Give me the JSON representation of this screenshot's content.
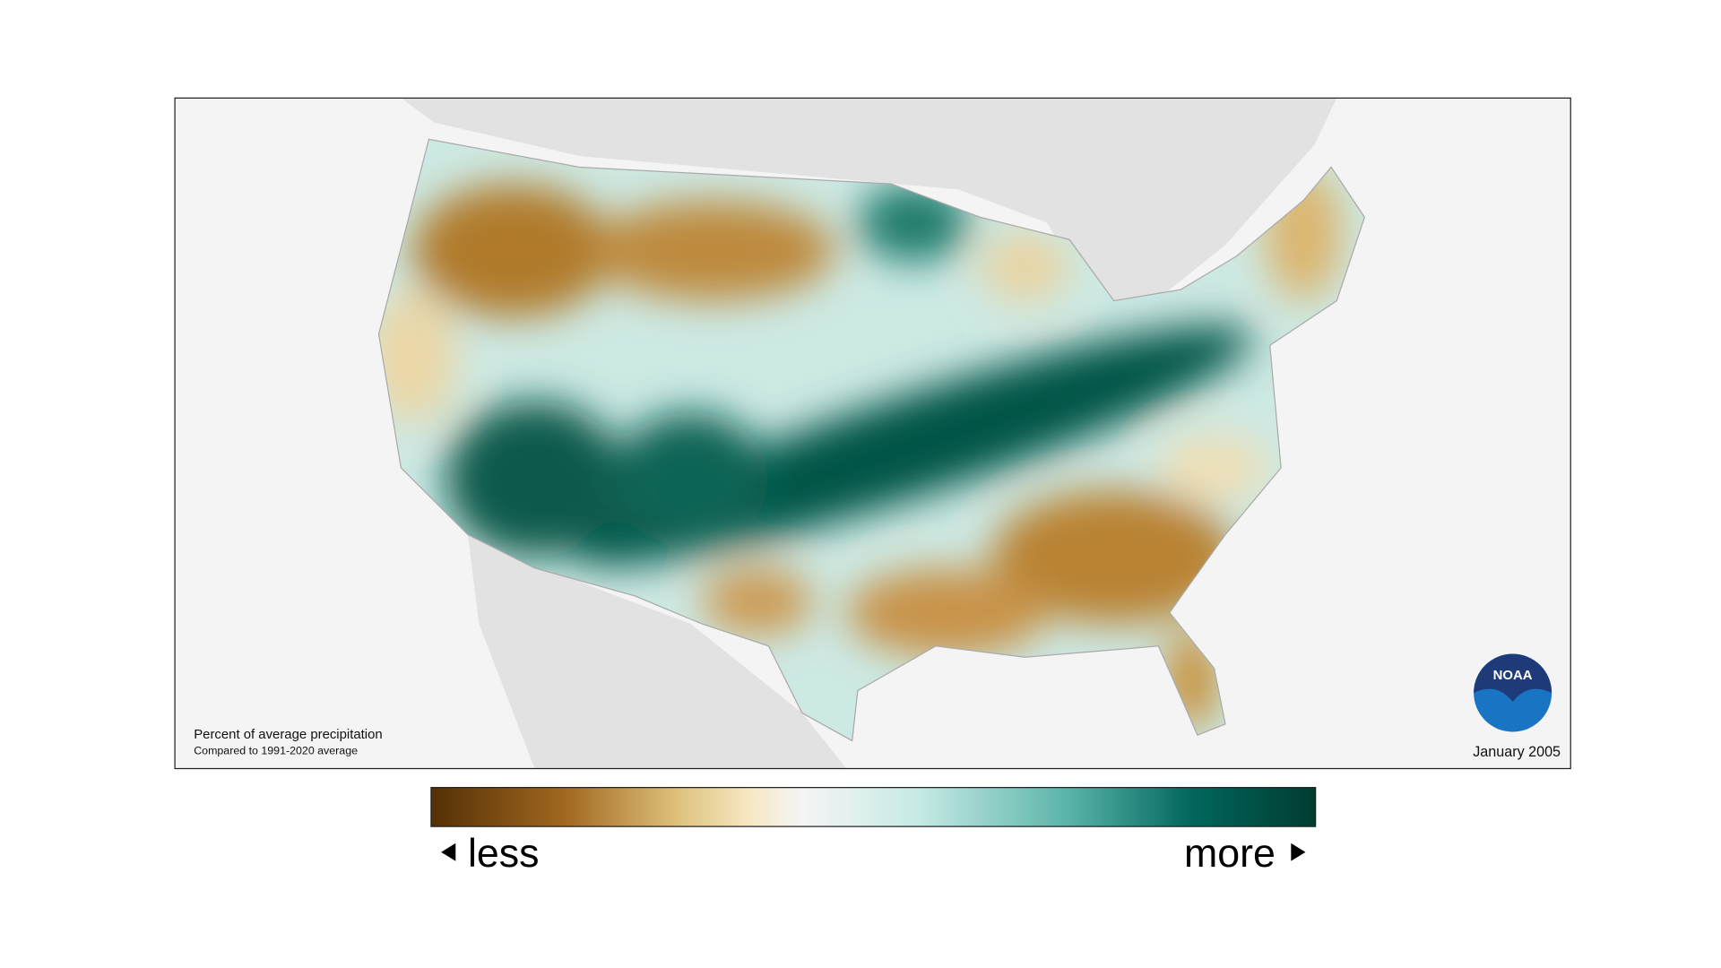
{
  "map": {
    "note_title": "Percent of average precipitation",
    "note_subtitle": "Compared to 1991-2020 average",
    "date": "January 2005",
    "logo": "NOAA",
    "legend": {
      "low": "less",
      "high": "more"
    }
  }
}
